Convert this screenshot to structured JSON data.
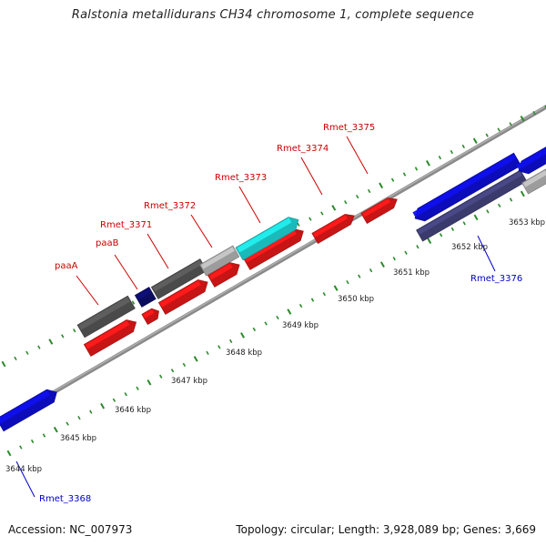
{
  "title": "Ralstonia metallidurans CH34 chromosome 1, complete sequence",
  "footer": {
    "accession": "Accession: NC_007973",
    "summary": "Topology: circular; Length: 3,928,089 bp; Genes: 3,669"
  },
  "colors": {
    "backbone": "#7a7a7a",
    "tick": "#2a8a2a",
    "ruler_label": "#222222",
    "gene_red": "#ff1a1a",
    "gene_blue": "#1010ee",
    "gene_navy": "#10107a",
    "gene_dark_gray": "#5f5f5f",
    "gene_light_gray": "#c8c8c8",
    "gene_cyan": "#22eeee",
    "gene_slate": "#4a4a8a",
    "label_red": "#cc0000",
    "label_blue": "#0000cc"
  },
  "ruler_labels": [
    "3644 kbp",
    "3645 kbp",
    "3646 kbp",
    "3647 kbp",
    "3648 kbp",
    "3649 kbp",
    "3650 kbp",
    "3651 kbp",
    "3652 kbp",
    "3653 kbp"
  ],
  "gene_labels": [
    {
      "text": "paaA",
      "color": "label_red"
    },
    {
      "text": "paaB",
      "color": "label_red"
    },
    {
      "text": "Rmet_3371",
      "color": "label_red"
    },
    {
      "text": "Rmet_3372",
      "color": "label_red"
    },
    {
      "text": "Rmet_3373",
      "color": "label_red"
    },
    {
      "text": "Rmet_3374",
      "color": "label_red"
    },
    {
      "text": "Rmet_3375",
      "color": "label_red"
    },
    {
      "text": "Rmet_3376",
      "color": "label_blue"
    },
    {
      "text": "Rmet_3368",
      "color": "label_blue"
    }
  ],
  "genes": [
    {
      "name": "gene-rmet-3368",
      "color": "gene_blue"
    },
    {
      "name": "gene-inner-1",
      "color": "gene_red"
    },
    {
      "name": "gene-inner-2",
      "color": "gene_red"
    },
    {
      "name": "gene-inner-3",
      "color": "gene_red"
    },
    {
      "name": "gene-inner-4",
      "color": "gene_red"
    },
    {
      "name": "gene-inner-5",
      "color": "gene_red"
    },
    {
      "name": "gene-rmet-3374",
      "color": "gene_red"
    },
    {
      "name": "gene-rmet-3375",
      "color": "gene_red"
    },
    {
      "name": "gene-paaA",
      "color": "gene_dark_gray"
    },
    {
      "name": "gene-paaB",
      "color": "gene_navy"
    },
    {
      "name": "gene-rmet-3371",
      "color": "gene_dark_gray"
    },
    {
      "name": "gene-rmet-3372",
      "color": "gene_light_gray"
    },
    {
      "name": "gene-rmet-3373",
      "color": "gene_cyan"
    },
    {
      "name": "gene-rmet-3376",
      "color": "gene_slate"
    },
    {
      "name": "gene-blue-right-1",
      "color": "gene_blue"
    },
    {
      "name": "gene-blue-right-2",
      "color": "gene_blue"
    },
    {
      "name": "gene-gray-right",
      "color": "gene_light_gray"
    }
  ]
}
